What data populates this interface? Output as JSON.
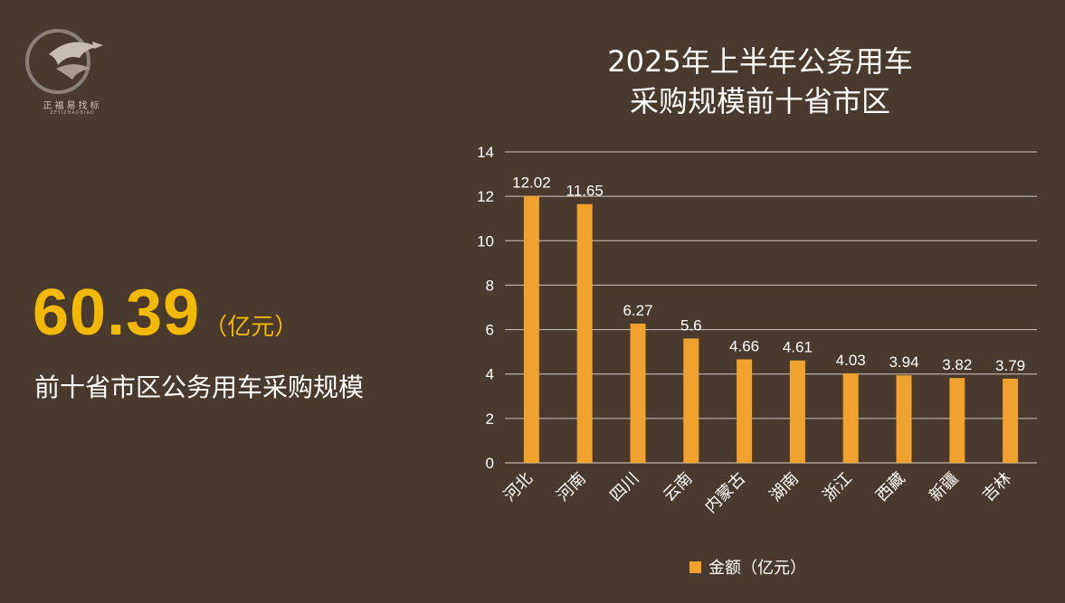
{
  "logo": {
    "name_cn": "正福易找标",
    "name_en": "ZFYIZHAOBIAO"
  },
  "kpi": {
    "value": "60.39",
    "unit": "（亿元）",
    "description": "前十省市区公务用车采购规模"
  },
  "colors": {
    "background": "#4a3a2e",
    "bar": "#f0a22e",
    "kpi": "#f3b800"
  },
  "chart_data": {
    "type": "bar",
    "title": "2025年上半年公务用车采购规模前十省市区",
    "title_lines": [
      "2025年上半年公务用车",
      "采购规模前十省市区"
    ],
    "categories": [
      "河北",
      "河南",
      "四川",
      "云南",
      "内蒙古",
      "湖南",
      "浙江",
      "西藏",
      "新疆",
      "吉林"
    ],
    "series": [
      {
        "name": "金额（亿元）",
        "values": [
          12.02,
          11.65,
          6.27,
          5.6,
          4.66,
          4.61,
          4.03,
          3.94,
          3.82,
          3.79
        ],
        "labels": [
          "12.02",
          "11.65",
          "6.27",
          "5.6",
          "4.66",
          "4.61",
          "4.03",
          "3.94",
          "3.82",
          "3.79"
        ]
      }
    ],
    "ylim": [
      0,
      14
    ],
    "yticks": [
      0,
      2,
      4,
      6,
      8,
      10,
      12,
      14
    ],
    "grid": true,
    "legend_position": "bottom"
  }
}
